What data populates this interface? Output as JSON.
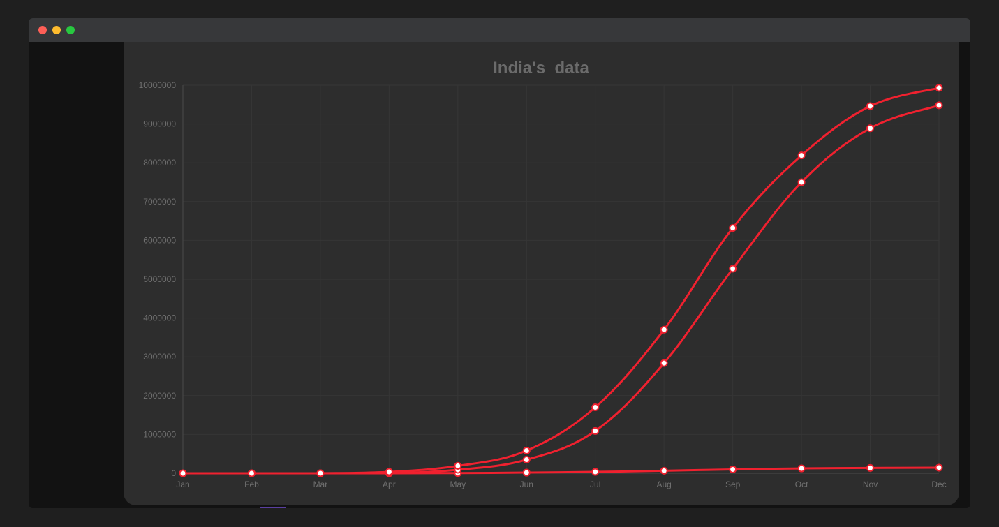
{
  "window": {
    "buttons": [
      "close",
      "minimize",
      "maximize"
    ]
  },
  "colors": {
    "line": "#f0212f",
    "point_fill": "#ffffff",
    "grid": "#363636",
    "text": "#707070",
    "title": "#6b6b6b"
  },
  "chart_data": {
    "type": "line",
    "title": "India's  data",
    "xlabel": "",
    "ylabel": "",
    "categories": [
      "Jan",
      "Feb",
      "Mar",
      "Apr",
      "May",
      "Jun",
      "Jul",
      "Aug",
      "Sep",
      "Oct",
      "Nov",
      "Dec"
    ],
    "ylim": [
      0,
      10000000
    ],
    "yticks": [
      "0",
      "1000000",
      "2000000",
      "3000000",
      "4000000",
      "5000000",
      "6000000",
      "7000000",
      "8000000",
      "9000000",
      "10000000"
    ],
    "grid": true,
    "legend": "none",
    "series": [
      {
        "values": [
          0,
          0,
          1000,
          35000,
          190000,
          585000,
          1700000,
          3700000,
          6320000,
          8190000,
          9460000,
          9930000
        ]
      },
      {
        "values": [
          0,
          0,
          0,
          5000,
          90000,
          350000,
          1090000,
          2840000,
          5270000,
          7500000,
          8890000,
          9480000
        ]
      },
      {
        "values": [
          0,
          0,
          0,
          1000,
          5000,
          17000,
          35000,
          65000,
          100000,
          125000,
          137000,
          145000
        ]
      }
    ]
  }
}
